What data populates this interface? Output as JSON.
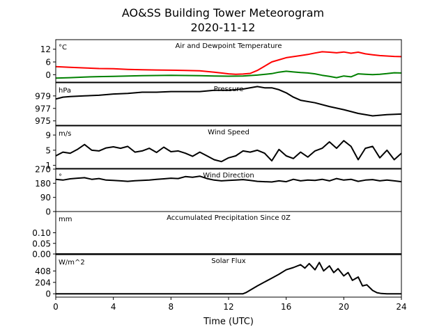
{
  "chart_data": {
    "type": "line",
    "title": "AO&SS Building Tower Meteorogram",
    "subtitle": "2020-11-12",
    "xlabel": "Time (UTC)",
    "xlim": [
      0,
      24
    ],
    "xticks": [
      0,
      4,
      8,
      12,
      16,
      20,
      24
    ],
    "panels": [
      {
        "id": "temperature",
        "title": "Air and Dewpoint Temperature",
        "unit": "°C",
        "ylim": [
          -3.5,
          16.5
        ],
        "yticks": [
          12,
          6,
          0
        ],
        "series": [
          {
            "color": "#ff0000",
            "x": [
              0,
              1,
              2,
              3,
              4,
              5,
              6,
              7,
              8,
              9,
              10,
              11,
              11.5,
              12,
              12.5,
              13,
              13.5,
              14,
              14.5,
              15,
              15.5,
              16,
              16.5,
              17,
              17.5,
              18,
              18.5,
              19,
              19.5,
              20,
              20.5,
              21,
              21.5,
              22,
              22.5,
              23,
              23.5,
              24
            ],
            "y": [
              3.8,
              3.5,
              3.2,
              2.9,
              2.8,
              2.5,
              2.3,
              2.2,
              2.1,
              2.0,
              1.8,
              1.2,
              0.8,
              0.4,
              0.2,
              0.3,
              0.6,
              2.0,
              4.0,
              6.0,
              7.0,
              8.0,
              8.5,
              9.0,
              9.5,
              10.2,
              10.8,
              10.6,
              10.3,
              10.7,
              10.1,
              10.6,
              9.8,
              9.4,
              9.0,
              8.8,
              8.6,
              8.5
            ]
          },
          {
            "color": "#008000",
            "x": [
              0,
              1,
              2,
              3,
              4,
              5,
              6,
              7,
              8,
              9,
              10,
              11,
              12,
              13,
              14,
              15,
              15.5,
              16,
              16.5,
              17,
              17.5,
              18,
              18.5,
              19,
              19.5,
              20,
              20.5,
              21,
              21.5,
              22,
              22.5,
              23,
              23.5,
              24
            ],
            "y": [
              -1.6,
              -1.4,
              -1.1,
              -0.9,
              -0.8,
              -0.6,
              -0.5,
              -0.4,
              -0.3,
              -0.4,
              -0.5,
              -0.6,
              -0.7,
              -0.6,
              -0.2,
              0.5,
              1.2,
              1.6,
              1.3,
              1.0,
              0.8,
              0.4,
              -0.3,
              -0.8,
              -1.4,
              -0.6,
              -1.0,
              0.4,
              0.2,
              0.0,
              0.2,
              0.5,
              0.9,
              0.8
            ]
          }
        ]
      },
      {
        "id": "pressure",
        "title": "Pressure",
        "unit": "hPa",
        "ylim": [
          974.3,
          981.1
        ],
        "yticks": [
          979,
          977,
          975
        ],
        "series": [
          {
            "color": "#000000",
            "x": [
              0,
              0.5,
              1,
              2,
              3,
              4,
              5,
              6,
              7,
              8,
              9,
              10,
              11,
              12,
              13,
              14,
              14.5,
              15,
              15.5,
              16,
              16.5,
              17,
              18,
              19,
              20,
              21,
              22,
              23,
              24
            ],
            "y": [
              978.5,
              978.8,
              978.9,
              979.0,
              979.1,
              979.3,
              979.4,
              979.6,
              979.6,
              979.7,
              979.7,
              979.7,
              979.9,
              979.9,
              980.1,
              980.5,
              980.3,
              980.3,
              980.0,
              979.5,
              978.8,
              978.3,
              977.9,
              977.3,
              976.8,
              976.2,
              975.8,
              976.0,
              976.1
            ]
          }
        ]
      },
      {
        "id": "wind_speed",
        "title": "Wind Speed",
        "unit": "m/s",
        "ylim": [
          0.2,
          11.4
        ],
        "yticks": [
          9,
          5,
          1
        ],
        "series": [
          {
            "color": "#000000",
            "x": [
              0,
              0.5,
              1,
              1.5,
              2,
              2.5,
              3,
              3.5,
              4,
              4.5,
              5,
              5.5,
              6,
              6.5,
              7,
              7.5,
              8,
              8.5,
              9,
              9.5,
              10,
              10.5,
              11,
              11.5,
              12,
              12.5,
              13,
              13.5,
              14,
              14.5,
              15,
              15.5,
              16,
              16.5,
              17,
              17.5,
              18,
              18.5,
              19,
              19.5,
              20,
              20.5,
              21,
              21.5,
              22,
              22.5,
              23,
              23.5,
              24
            ],
            "y": [
              3.5,
              4.5,
              4.2,
              5.2,
              6.5,
              5.0,
              4.8,
              5.6,
              5.9,
              5.5,
              6.0,
              4.5,
              4.8,
              5.5,
              4.4,
              5.8,
              4.6,
              4.8,
              4.2,
              3.4,
              4.5,
              3.5,
              2.5,
              2.0,
              3.0,
              3.5,
              4.8,
              4.5,
              5.0,
              4.2,
              2.2,
              5.2,
              3.5,
              2.8,
              4.5,
              3.2,
              4.8,
              5.5,
              7.2,
              5.5,
              7.5,
              6.0,
              2.5,
              5.5,
              6.0,
              3.0,
              5.0,
              2.5,
              4.2
            ]
          }
        ]
      },
      {
        "id": "wind_direction",
        "title": "Wind Direction",
        "unit": "°",
        "ylim": [
          0,
          270
        ],
        "yticks": [
          270,
          180,
          90,
          0
        ],
        "series": [
          {
            "color": "#000000",
            "x": [
              0,
              0.5,
              1,
              1.5,
              2,
              2.5,
              3,
              3.5,
              4,
              4.5,
              5,
              5.5,
              6,
              6.5,
              7,
              7.5,
              8,
              8.5,
              9,
              9.5,
              10,
              10.5,
              11,
              11.5,
              12,
              12.5,
              13,
              13.5,
              14,
              14.5,
              15,
              15.5,
              16,
              16.5,
              17,
              17.5,
              18,
              18.5,
              19,
              19.5,
              20,
              20.5,
              21,
              21.5,
              22,
              22.5,
              23,
              23.5,
              24
            ],
            "y": [
              205,
              200,
              208,
              212,
              215,
              205,
              210,
              200,
              198,
              195,
              192,
              196,
              198,
              200,
              205,
              208,
              212,
              210,
              222,
              218,
              225,
              210,
              200,
              195,
              198,
              200,
              203,
              198,
              192,
              190,
              188,
              195,
              190,
              205,
              195,
              200,
              198,
              205,
              195,
              210,
              200,
              205,
              192,
              200,
              203,
              195,
              200,
              195,
              190
            ]
          }
        ]
      },
      {
        "id": "precipitation",
        "title": "Accumulated Precipitation Since 0Z",
        "unit": "mm",
        "ylim": [
          0,
          0.2
        ],
        "yticks": [
          0.1,
          0.05,
          0.0
        ],
        "series": [
          {
            "color": "#000000",
            "x": [
              0,
              24
            ],
            "y": [
              0,
              0
            ]
          }
        ]
      },
      {
        "id": "solar_flux",
        "title": "Solar Flux",
        "unit": "W/m^2",
        "ylim": [
          -60,
          700
        ],
        "yticks": [
          408,
          204,
          0
        ],
        "series": [
          {
            "color": "#000000",
            "x": [
              0,
              13,
              13.2,
              14,
              15,
              15.5,
              16,
              16.5,
              17,
              17.3,
              17.6,
              18,
              18.3,
              18.6,
              19,
              19.3,
              19.6,
              20,
              20.3,
              20.6,
              21,
              21.3,
              21.6,
              22,
              22.3,
              22.6,
              23,
              24
            ],
            "y": [
              0,
              0,
              20,
              140,
              280,
              350,
              430,
              470,
              520,
              460,
              540,
              430,
              560,
              410,
              500,
              380,
              450,
              320,
              380,
              240,
              300,
              140,
              160,
              60,
              20,
              5,
              0,
              0
            ]
          }
        ]
      }
    ]
  }
}
